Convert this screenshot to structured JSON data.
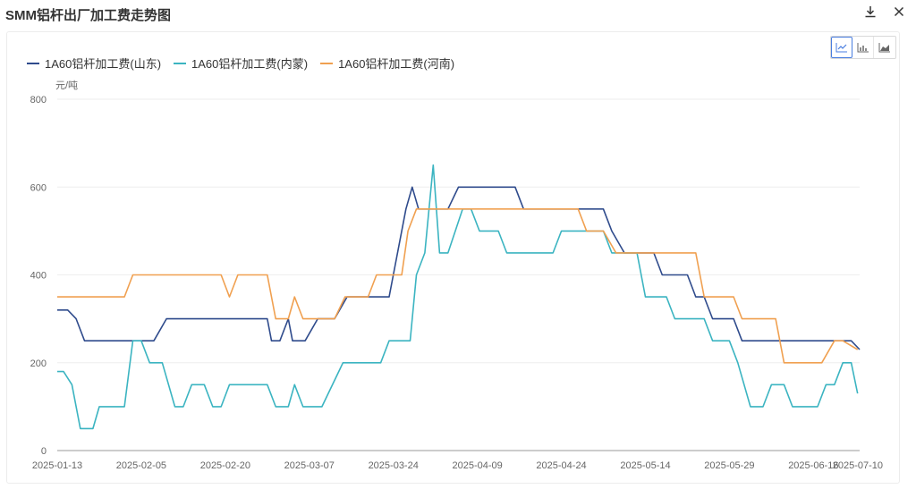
{
  "title": "SMM铝杆出厂加工费走势图",
  "actions": {
    "download_icon": "download-icon",
    "close_icon": "close-icon"
  },
  "chart_types": [
    {
      "name": "line-chart-icon",
      "active": true
    },
    {
      "name": "bar-chart-icon",
      "active": false
    },
    {
      "name": "area-chart-icon",
      "active": false
    }
  ],
  "chart_data": {
    "type": "line",
    "unit_label": "元/吨",
    "ylim": [
      0,
      800
    ],
    "yticks": [
      0,
      200,
      400,
      600,
      800
    ],
    "grid": true,
    "legend_position": "top-left",
    "xticks": [
      "2025-01-13",
      "2025-02-05",
      "2025-02-20",
      "2025-03-07",
      "2025-03-24",
      "2025-04-09",
      "2025-04-24",
      "2025-05-14",
      "2025-05-29",
      "2025-06-16",
      "2025-07-10"
    ],
    "series": [
      {
        "name": "1A60铝杆加工费(山东)",
        "color": "#2f4b8c",
        "points": [
          [
            0,
            320
          ],
          [
            0.25,
            320
          ],
          [
            0.45,
            300
          ],
          [
            0.65,
            250
          ],
          [
            2,
            250
          ],
          [
            2.3,
            250
          ],
          [
            2.6,
            300
          ],
          [
            4.5,
            300
          ],
          [
            5.0,
            300
          ],
          [
            5.1,
            250
          ],
          [
            5.3,
            250
          ],
          [
            5.5,
            300
          ],
          [
            5.6,
            250
          ],
          [
            5.9,
            250
          ],
          [
            6.2,
            300
          ],
          [
            6.6,
            300
          ],
          [
            6.9,
            350
          ],
          [
            7.9,
            350
          ],
          [
            8.1,
            450
          ],
          [
            8.3,
            550
          ],
          [
            8.45,
            600
          ],
          [
            8.6,
            550
          ],
          [
            9.3,
            550
          ],
          [
            9.55,
            600
          ],
          [
            10.9,
            600
          ],
          [
            11.1,
            550
          ],
          [
            12.4,
            550
          ],
          [
            12.6,
            550
          ],
          [
            13.0,
            550
          ],
          [
            13.2,
            500
          ],
          [
            13.5,
            450
          ],
          [
            14.2,
            450
          ],
          [
            14.4,
            400
          ],
          [
            15.0,
            400
          ],
          [
            15.2,
            350
          ],
          [
            15.4,
            350
          ],
          [
            15.6,
            300
          ],
          [
            16.1,
            300
          ],
          [
            16.3,
            250
          ],
          [
            17.0,
            250
          ],
          [
            18.1,
            250
          ],
          [
            18.5,
            250
          ],
          [
            18.9,
            250
          ],
          [
            19.1,
            230
          ]
        ]
      },
      {
        "name": "1A60铝杆加工费(内蒙)",
        "color": "#3bb4c1",
        "points": [
          [
            0,
            180
          ],
          [
            0.15,
            180
          ],
          [
            0.35,
            150
          ],
          [
            0.55,
            50
          ],
          [
            0.85,
            50
          ],
          [
            1.0,
            100
          ],
          [
            1.6,
            100
          ],
          [
            1.8,
            250
          ],
          [
            2.0,
            250
          ],
          [
            2.2,
            200
          ],
          [
            2.5,
            200
          ],
          [
            2.8,
            100
          ],
          [
            3.0,
            100
          ],
          [
            3.2,
            150
          ],
          [
            3.5,
            150
          ],
          [
            3.7,
            100
          ],
          [
            3.9,
            100
          ],
          [
            4.1,
            150
          ],
          [
            5.0,
            150
          ],
          [
            5.2,
            100
          ],
          [
            5.5,
            100
          ],
          [
            5.65,
            150
          ],
          [
            5.85,
            100
          ],
          [
            6.3,
            100
          ],
          [
            6.8,
            200
          ],
          [
            7.7,
            200
          ],
          [
            7.9,
            250
          ],
          [
            8.4,
            250
          ],
          [
            8.55,
            400
          ],
          [
            8.75,
            450
          ],
          [
            8.95,
            650
          ],
          [
            9.1,
            450
          ],
          [
            9.3,
            450
          ],
          [
            9.65,
            550
          ],
          [
            9.85,
            550
          ],
          [
            10.05,
            500
          ],
          [
            10.5,
            500
          ],
          [
            10.7,
            450
          ],
          [
            11.8,
            450
          ],
          [
            12.0,
            500
          ],
          [
            13.0,
            500
          ],
          [
            13.2,
            450
          ],
          [
            13.8,
            450
          ],
          [
            14.0,
            350
          ],
          [
            14.5,
            350
          ],
          [
            14.7,
            300
          ],
          [
            15.4,
            300
          ],
          [
            15.6,
            250
          ],
          [
            16.0,
            250
          ],
          [
            16.2,
            200
          ],
          [
            16.5,
            100
          ],
          [
            16.8,
            100
          ],
          [
            17.0,
            150
          ],
          [
            17.3,
            150
          ],
          [
            17.5,
            100
          ],
          [
            18.1,
            100
          ],
          [
            18.3,
            150
          ],
          [
            18.5,
            150
          ],
          [
            18.7,
            200
          ],
          [
            18.9,
            200
          ],
          [
            19.05,
            130
          ]
        ]
      },
      {
        "name": "1A60铝杆加工费(河南)",
        "color": "#f0a050",
        "points": [
          [
            0,
            350
          ],
          [
            1.6,
            350
          ],
          [
            1.8,
            400
          ],
          [
            3.9,
            400
          ],
          [
            4.1,
            350
          ],
          [
            4.3,
            400
          ],
          [
            5.0,
            400
          ],
          [
            5.2,
            300
          ],
          [
            5.5,
            300
          ],
          [
            5.65,
            350
          ],
          [
            5.85,
            300
          ],
          [
            6.3,
            300
          ],
          [
            6.6,
            300
          ],
          [
            6.85,
            350
          ],
          [
            7.4,
            350
          ],
          [
            7.6,
            400
          ],
          [
            8.2,
            400
          ],
          [
            8.35,
            500
          ],
          [
            8.55,
            550
          ],
          [
            12.4,
            550
          ],
          [
            12.6,
            500
          ],
          [
            13.0,
            500
          ],
          [
            13.3,
            450
          ],
          [
            15.2,
            450
          ],
          [
            15.4,
            350
          ],
          [
            16.1,
            350
          ],
          [
            16.3,
            300
          ],
          [
            17.1,
            300
          ],
          [
            17.3,
            200
          ],
          [
            18.2,
            200
          ],
          [
            18.5,
            250
          ],
          [
            18.7,
            250
          ],
          [
            19.05,
            230
          ]
        ]
      }
    ]
  }
}
